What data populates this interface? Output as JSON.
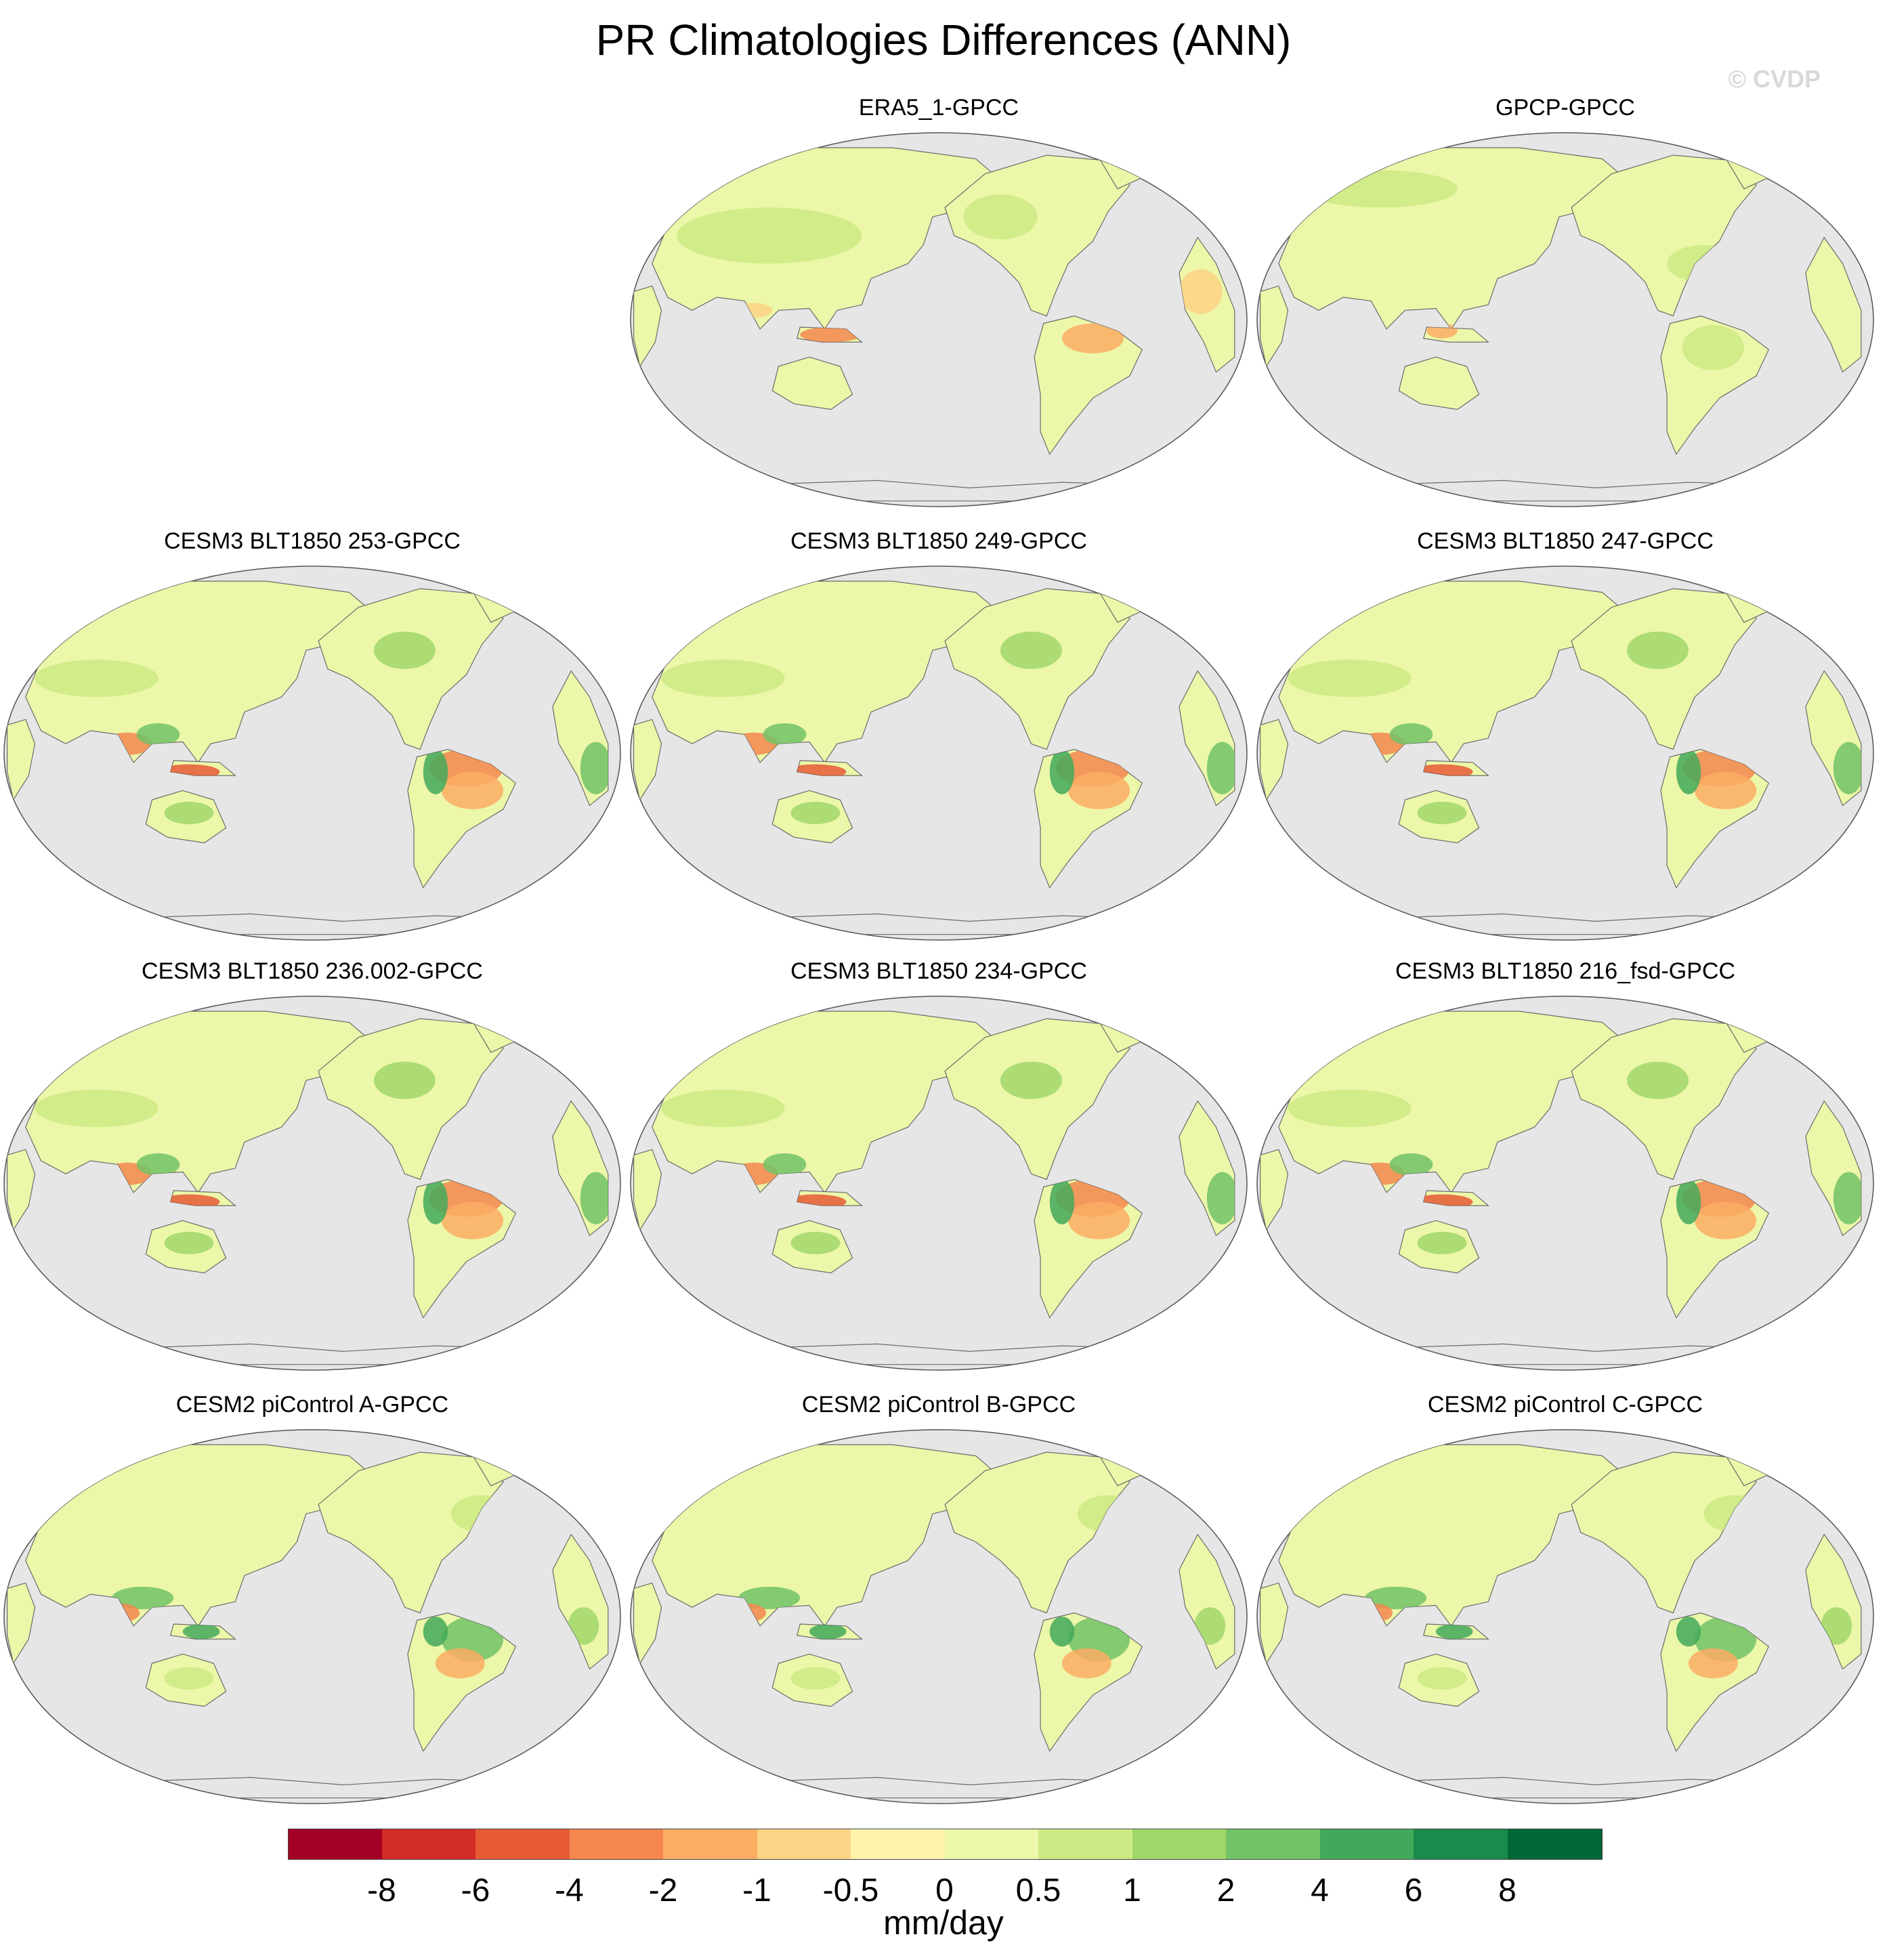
{
  "title": "PR Climatologies Differences (ANN)",
  "watermark": "© CVDP",
  "panels": [
    {
      "title": "ERA5_1-GPCC",
      "style": "era5"
    },
    {
      "title": "GPCP-GPCC",
      "style": "gpcp"
    },
    {
      "title": "CESM3 BLT1850 253-GPCC",
      "style": "cesm3"
    },
    {
      "title": "CESM3 BLT1850 249-GPCC",
      "style": "cesm3"
    },
    {
      "title": "CESM3 BLT1850 247-GPCC",
      "style": "cesm3"
    },
    {
      "title": "CESM3 BLT1850 236.002-GPCC",
      "style": "cesm3"
    },
    {
      "title": "CESM3 BLT1850 234-GPCC",
      "style": "cesm3"
    },
    {
      "title": "CESM3 BLT1850 216_fsd-GPCC",
      "style": "cesm3"
    },
    {
      "title": "CESM2 piControl A-GPCC",
      "style": "cesm2"
    },
    {
      "title": "CESM2 piControl B-GPCC",
      "style": "cesm2"
    },
    {
      "title": "CESM2 piControl C-GPCC",
      "style": "cesm2"
    }
  ],
  "colorbar": {
    "units": "mm/day",
    "tick_labels": [
      "-8",
      "-6",
      "-4",
      "-2",
      "-1",
      "-0.5",
      "0",
      "0.5",
      "1",
      "2",
      "4",
      "6",
      "8"
    ],
    "colors": [
      "#a50026",
      "#d42d27",
      "#e65a36",
      "#f5874f",
      "#fbad64",
      "#fdd486",
      "#fef4ab",
      "#ecf7a9",
      "#ccea83",
      "#a1d76a",
      "#72c266",
      "#43a95a",
      "#198c4b",
      "#006837"
    ]
  },
  "ocean_color": "#e6e6e6"
}
